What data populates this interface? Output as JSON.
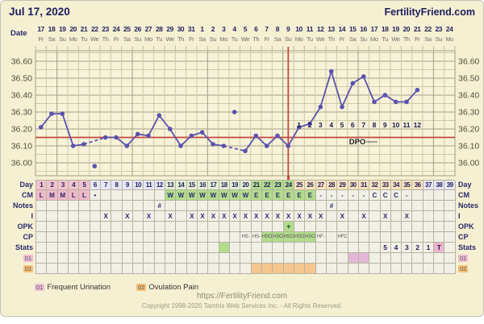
{
  "header": {
    "title": "Jul 17, 2020",
    "brand": "FertilityFriend.com"
  },
  "date_header": {
    "label": "Date",
    "dates": [
      "17",
      "18",
      "19",
      "20",
      "21",
      "22",
      "23",
      "24",
      "25",
      "26",
      "27",
      "28",
      "29",
      "30",
      "31",
      "1",
      "2",
      "3",
      "4",
      "5",
      "6",
      "7",
      "8",
      "9",
      "10",
      "11",
      "12",
      "13",
      "14",
      "15",
      "16",
      "17",
      "18",
      "19",
      "20",
      "21",
      "22",
      "23",
      "24"
    ],
    "weekdays": [
      "Fr",
      "Sa",
      "Su",
      "Mo",
      "Tu",
      "We",
      "Th",
      "Fr",
      "Sa",
      "Su",
      "Mo",
      "Tu",
      "We",
      "Th",
      "Fr",
      "Sa",
      "Su",
      "Mo",
      "Tu",
      "We",
      "Th",
      "Fr",
      "Sa",
      "Su",
      "Mo",
      "Tu",
      "We",
      "Th",
      "Fr",
      "Sa",
      "Su",
      "Mo",
      "Tu",
      "We",
      "Th",
      "Fr",
      "Sa",
      "Su",
      "Mo"
    ]
  },
  "chart_data": {
    "type": "line",
    "title": "Jul 17, 2020",
    "y_ticks": [
      "36.60",
      "36.50",
      "36.40",
      "36.30",
      "36.20",
      "36.10",
      "36.00"
    ],
    "ylim": [
      35.92,
      36.66
    ],
    "temps_c": [
      36.21,
      36.29,
      36.29,
      36.1,
      36.11,
      35.98,
      36.15,
      36.15,
      36.1,
      36.17,
      36.16,
      36.28,
      36.2,
      36.1,
      36.16,
      36.18,
      36.11,
      36.1,
      36.3,
      36.07,
      36.16,
      36.1,
      36.16,
      36.1,
      36.21,
      36.23,
      36.33,
      36.54,
      36.33,
      36.47,
      36.51,
      36.36,
      36.4,
      36.36,
      36.36,
      36.43,
      null,
      null,
      null
    ],
    "excluded_days": [
      6,
      19
    ],
    "dashed_segments": [
      [
        5,
        7
      ],
      [
        18,
        20
      ]
    ],
    "solid_segments": [
      [
        1,
        5
      ],
      [
        7,
        18
      ],
      [
        20,
        36
      ]
    ],
    "coverline_c": 36.15,
    "ovulation_day": 24,
    "dpo_label": "DPO",
    "dpo_numbers": [
      "1",
      "2",
      "3",
      "4",
      "5",
      "6",
      "7",
      "8",
      "9",
      "10",
      "11",
      "12"
    ],
    "dpo_start_day": 25
  },
  "grid": {
    "rows": [
      {
        "id": "day",
        "label": "Day",
        "values": [
          "1",
          "2",
          "3",
          "4",
          "5",
          "6",
          "7",
          "8",
          "9",
          "10",
          "11",
          "12",
          "13",
          "14",
          "15",
          "16",
          "17",
          "18",
          "19",
          "20",
          "21",
          "22",
          "23",
          "24",
          "25",
          "26",
          "27",
          "28",
          "29",
          "30",
          "31",
          "32",
          "33",
          "34",
          "35",
          "36",
          "37",
          "38",
          "39"
        ],
        "bg": [
          {
            "from": 1,
            "to": 5,
            "color": "#f2c3cd"
          },
          {
            "from": 6,
            "to": 12,
            "color": "#e7e7f3"
          },
          {
            "from": 13,
            "to": 20,
            "color": "#e4efd3"
          },
          {
            "from": 21,
            "to": 24,
            "color": "#b2dc8c"
          },
          {
            "from": 25,
            "to": 36,
            "color": "#fbe3bd"
          },
          {
            "from": 37,
            "to": 39,
            "color": "#e7e7f3"
          }
        ]
      },
      {
        "id": "cm",
        "label": "CM",
        "values": [
          "L",
          "M",
          "M",
          "L",
          "L",
          "•",
          "",
          "",
          "",
          "",
          "",
          "",
          "W",
          "W",
          "W",
          "W",
          "W",
          "W",
          "W",
          "W",
          "E",
          "E",
          "E",
          "E",
          "E",
          "E",
          "-",
          "-",
          "-",
          "-",
          "-",
          "C",
          "C",
          "C",
          "-",
          "",
          "",
          "",
          ""
        ],
        "bg": [
          {
            "from": 1,
            "to": 5,
            "color": "#efb9c9"
          },
          {
            "from": 13,
            "to": 26,
            "color": "#b2dc8c"
          }
        ]
      },
      {
        "id": "notes",
        "label": "Notes",
        "values": [
          "",
          "",
          "",
          "",
          "",
          "",
          "",
          "",
          "",
          "",
          "",
          "#",
          "",
          "",
          "",
          "",
          "",
          "",
          "",
          "",
          "",
          "",
          "",
          "",
          "",
          "",
          "",
          "#",
          "",
          "",
          "",
          "",
          "",
          "",
          "",
          "",
          "",
          "",
          ""
        ]
      },
      {
        "id": "intercourse",
        "label": "I",
        "values": [
          "",
          "",
          "",
          "",
          "",
          "",
          "X",
          "",
          "X",
          "",
          "X",
          "",
          "X",
          "",
          "X",
          "X",
          "X",
          "X",
          "X",
          "X",
          "X",
          "X",
          "X",
          "X",
          "X",
          "X",
          "X",
          "",
          "X",
          "",
          "X",
          "",
          "X",
          "",
          "X",
          "",
          "",
          "",
          ""
        ]
      },
      {
        "id": "opk",
        "label": "OPK",
        "values": [
          "",
          "",
          "",
          "",
          "",
          "",
          "",
          "",
          "",
          "",
          "",
          "",
          "",
          "",
          "",
          "",
          "",
          "",
          "",
          "",
          "",
          "",
          "",
          "+",
          "",
          "",
          "",
          "",
          "",
          "",
          "",
          "",
          "",
          "",
          "",
          "",
          "",
          "",
          ""
        ],
        "bg": [
          {
            "from": 24,
            "to": 24,
            "color": "#b2dc8c"
          }
        ]
      },
      {
        "id": "cp",
        "label": "CP",
        "values": [
          "",
          "",
          "",
          "",
          "",
          "",
          "",
          "",
          "",
          "",
          "",
          "",
          "",
          "",
          "",
          "",
          "",
          "",
          "",
          "HS-",
          "HS-",
          "HSO",
          "HSO",
          "HSO",
          "HSO",
          "HSO",
          "HF-",
          "",
          "HFC",
          "",
          "",
          "",
          "",
          "",
          "",
          "",
          "",
          "",
          ""
        ],
        "bg": [
          {
            "from": 22,
            "to": 26,
            "color": "#b2dc8c"
          }
        ]
      },
      {
        "id": "stats",
        "label": "Stats",
        "values": [
          "",
          "",
          "",
          "",
          "",
          "",
          "",
          "",
          "",
          "",
          "",
          "",
          "",
          "",
          "",
          "",
          "",
          "",
          "",
          "",
          "",
          "",
          "",
          "",
          "",
          "",
          "",
          "",
          "",
          "",
          "",
          "",
          "5",
          "4",
          "3",
          "2",
          "1",
          "T",
          ""
        ],
        "bg": [
          {
            "from": 18,
            "to": 18,
            "color": "#b2dc8c"
          },
          {
            "from": 38,
            "to": 38,
            "color": "#eeb3cd"
          }
        ]
      },
      {
        "id": "s01",
        "label": "01",
        "badge": "#eebbd6",
        "values": [],
        "bg": [
          {
            "from": 30,
            "to": 31,
            "color": "#e3b7d6"
          }
        ]
      },
      {
        "id": "s02",
        "label": "02",
        "badge": "#f5c078",
        "values": [],
        "bg": [
          {
            "from": 21,
            "to": 26,
            "color": "#f5c68e"
          }
        ]
      }
    ]
  },
  "legend": [
    {
      "code": "01",
      "label": "Frequent Urination",
      "color": "#eebbd6"
    },
    {
      "code": "02",
      "label": "Ovulation Pain",
      "color": "#f5c078"
    }
  ],
  "footer": {
    "url": "https://FertilityFriend.com",
    "copyright": "Copyright 1998-2020 Tamtris Web Services Inc. - All Rights Reserved."
  },
  "colors": {
    "navy": "#22225e",
    "red": "#c6493f",
    "purple": "#5b52ae",
    "board_bg": "#f5f0d2",
    "plot_bg": "#f7f3d9",
    "grid_light": "#cfc9a6",
    "grid_dark": "#a39d82",
    "cell_border": "#b7b3a1",
    "cell_bg": "#f1f0e7",
    "fertile_green": "#b2dc8c",
    "menses_pink": "#efb9c9",
    "luteal_peach": "#fbe3bd"
  }
}
